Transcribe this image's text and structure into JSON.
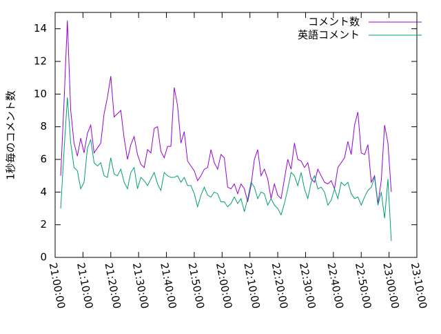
{
  "chart_data": {
    "type": "line",
    "ylabel": "1秒毎のコメント数",
    "x": [
      "21:02:00",
      "21:03:12",
      "21:04:24",
      "21:05:36",
      "21:06:48",
      "21:08:00",
      "21:09:12",
      "21:10:24",
      "21:11:36",
      "21:12:48",
      "21:14:00",
      "21:15:12",
      "21:16:24",
      "21:17:36",
      "21:18:48",
      "21:20:00",
      "21:21:12",
      "21:22:24",
      "21:23:36",
      "21:24:48",
      "21:26:00",
      "21:27:12",
      "21:28:24",
      "21:29:36",
      "21:30:48",
      "21:32:00",
      "21:33:12",
      "21:34:24",
      "21:35:36",
      "21:36:48",
      "21:38:00",
      "21:39:12",
      "21:40:24",
      "21:41:36",
      "21:42:48",
      "21:44:00",
      "21:45:12",
      "21:46:24",
      "21:47:36",
      "21:48:48",
      "21:50:00",
      "21:51:12",
      "21:52:24",
      "21:53:36",
      "21:54:48",
      "21:56:00",
      "21:57:12",
      "21:58:24",
      "21:59:36",
      "22:00:48",
      "22:02:00",
      "22:03:12",
      "22:04:24",
      "22:05:36",
      "22:06:48",
      "22:08:00",
      "22:09:12",
      "22:10:24",
      "22:11:36",
      "22:12:48",
      "22:14:00",
      "22:15:12",
      "22:16:24",
      "22:17:36",
      "22:18:48",
      "22:20:00",
      "22:21:12",
      "22:22:24",
      "22:23:36",
      "22:24:48",
      "22:26:00",
      "22:27:12",
      "22:28:24",
      "22:29:36",
      "22:30:48",
      "22:32:00",
      "22:33:12",
      "22:34:24",
      "22:35:36",
      "22:36:48",
      "22:38:00",
      "22:39:12",
      "22:40:24",
      "22:41:36",
      "22:42:48",
      "22:44:00",
      "22:45:12",
      "22:46:24",
      "22:47:36",
      "22:48:48",
      "22:50:00",
      "22:51:12",
      "22:52:24",
      "22:53:36",
      "22:54:48",
      "22:56:00",
      "22:57:12",
      "22:58:24",
      "22:59:36",
      "23:00:48"
    ],
    "series": [
      {
        "name": "コメント数",
        "color": "#9400d3",
        "values": [
          5.0,
          9.5,
          14.5,
          9.0,
          7.0,
          6.2,
          7.3,
          6.4,
          7.6,
          8.1,
          6.4,
          6.7,
          7.0,
          8.8,
          9.8,
          11.1,
          8.6,
          8.8,
          9.0,
          7.3,
          6.0,
          6.9,
          7.4,
          6.3,
          5.7,
          5.5,
          6.6,
          6.4,
          7.9,
          8.0,
          6.5,
          6.1,
          6.8,
          6.8,
          10.4,
          9.3,
          7.0,
          7.7,
          5.9,
          5.6,
          5.3,
          4.7,
          5.0,
          5.4,
          5.5,
          6.6,
          5.8,
          5.4,
          6.3,
          6.1,
          4.3,
          4.2,
          4.5,
          3.9,
          4.5,
          4.2,
          3.4,
          4.4,
          6.0,
          6.6,
          5.0,
          5.4,
          4.8,
          3.6,
          4.5,
          3.8,
          3.6,
          4.8,
          6.0,
          5.4,
          7.0,
          6.0,
          5.9,
          5.5,
          5.8,
          4.8,
          4.6,
          5.4,
          5.0,
          4.6,
          4.5,
          4.7,
          4.2,
          5.5,
          5.8,
          6.1,
          7.1,
          6.3,
          8.1,
          8.9,
          6.4,
          6.3,
          6.9,
          4.6,
          5.0,
          3.3,
          4.7,
          8.1,
          7.0,
          4.0
        ]
      },
      {
        "name": "英語コメント",
        "color": "#009e73",
        "values": [
          3.0,
          6.5,
          9.8,
          7.0,
          5.5,
          5.3,
          4.2,
          4.6,
          6.7,
          7.2,
          5.8,
          5.6,
          5.8,
          5.0,
          4.9,
          6.1,
          5.1,
          5.0,
          5.4,
          4.6,
          4.2,
          5.2,
          5.5,
          4.2,
          4.9,
          4.7,
          4.4,
          4.8,
          5.2,
          4.5,
          4.1,
          5.2,
          5.0,
          4.9,
          4.9,
          5.0,
          4.6,
          4.9,
          4.4,
          4.4,
          3.9,
          3.1,
          3.8,
          4.3,
          3.8,
          3.7,
          4.0,
          3.9,
          3.4,
          3.4,
          3.1,
          3.3,
          3.7,
          3.3,
          3.6,
          2.8,
          3.6,
          4.6,
          4.3,
          3.6,
          4.0,
          3.9,
          3.2,
          3.6,
          3.2,
          3.0,
          2.6,
          3.3,
          4.2,
          5.2,
          5.0,
          4.4,
          5.2,
          4.2,
          3.6,
          4.6,
          5.0,
          4.2,
          4.3,
          4.0,
          3.2,
          3.5,
          4.2,
          3.6,
          4.6,
          4.4,
          4.6,
          3.9,
          3.6,
          3.7,
          3.2,
          3.7,
          4.1,
          4.3,
          4.9,
          3.2,
          4.0,
          2.4,
          4.8,
          1.0
        ]
      }
    ],
    "xlim": [
      "21:00:00",
      "23:10:00"
    ],
    "xticks": [
      "21:00:00",
      "21:10:00",
      "21:20:00",
      "21:30:00",
      "21:40:00",
      "21:50:00",
      "22:00:00",
      "22:10:00",
      "22:20:00",
      "22:30:00",
      "22:40:00",
      "22:50:00",
      "23:00:00",
      "23:10:00"
    ],
    "ylim": [
      0,
      15
    ],
    "yticks": [
      0,
      2,
      4,
      6,
      8,
      10,
      12,
      14
    ],
    "legend": "top-right"
  }
}
